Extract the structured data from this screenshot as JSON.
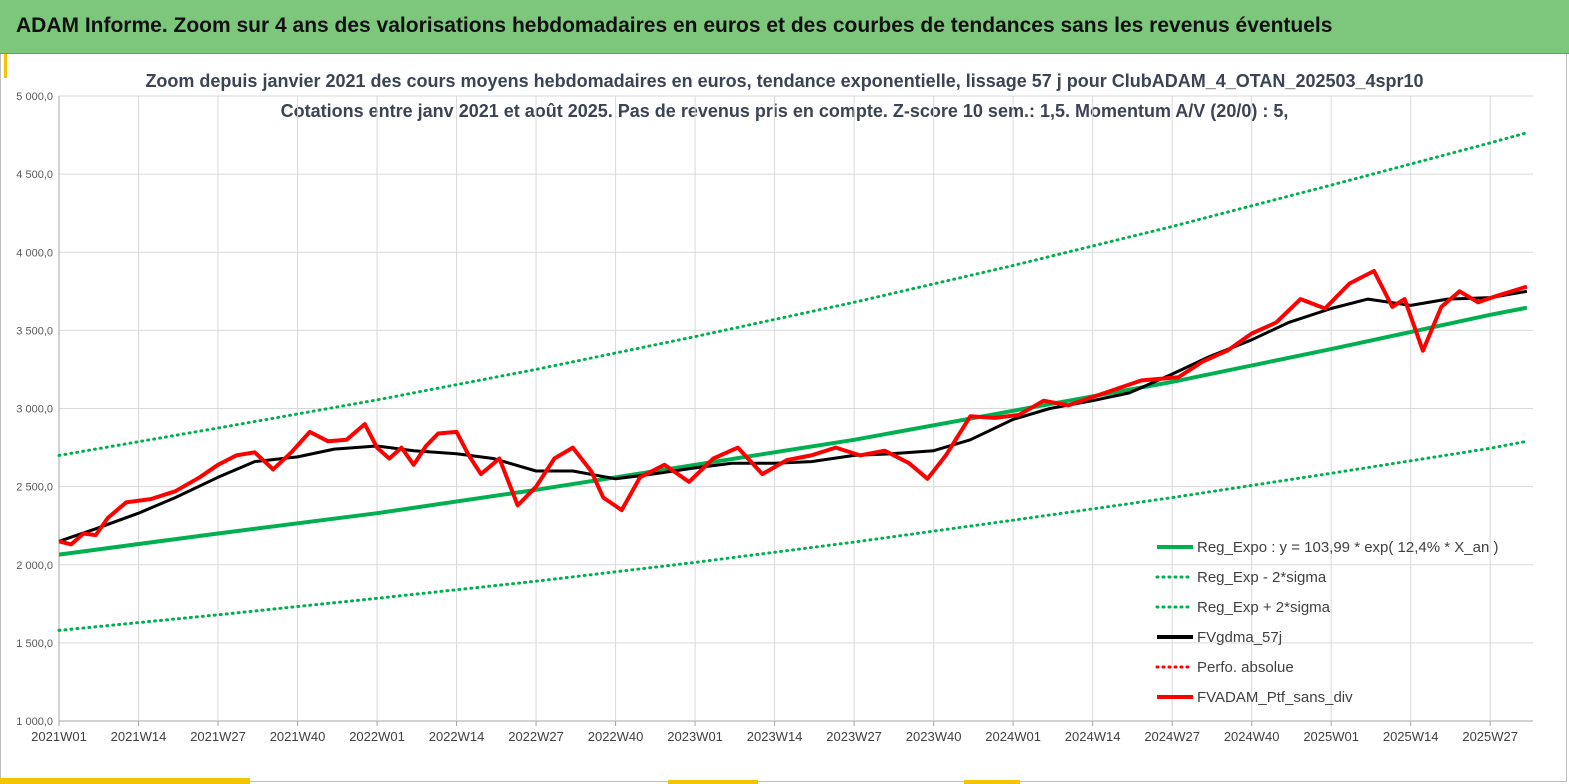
{
  "header": {
    "title": "ADAM Informe. Zoom sur 4 ans des valorisations hebdomadaires en euros et des courbes de tendances sans les revenus éventuels"
  },
  "colors": {
    "banner": "#7dc77d",
    "accent": "#f5c400",
    "trend": "#00b050",
    "smooth": "#000000",
    "portfolio": "#ff0000"
  },
  "chart_data": {
    "type": "line",
    "title": "Zoom depuis janvier 2021 des cours moyens hebdomadaires en euros, tendance exponentielle, lissage 57 j pour ClubADAM_4_OTAN_202503_4spr10",
    "subtitle": "Cotations entre janv 2021 et août 2025. Pas de revenus pris en compte. Z-score 10 sem.: 1,5. Momentum A/V (20/0) : 5,",
    "xlabel": "",
    "ylabel": "",
    "ylim": [
      1000,
      5000
    ],
    "y_ticks": [
      "1 000,0",
      "1 500,0",
      "2 000,0",
      "2 500,0",
      "3 000,0",
      "3 500,0",
      "4 000,0",
      "4 500,0",
      "5 000,0"
    ],
    "x_ticks": [
      "2021W01",
      "2021W14",
      "2021W27",
      "2021W40",
      "2022W01",
      "2022W14",
      "2022W27",
      "2022W40",
      "2023W01",
      "2023W14",
      "2023W27",
      "2023W40",
      "2024W01",
      "2024W14",
      "2024W27",
      "2024W40",
      "2025W01",
      "2025W14",
      "2025W27"
    ],
    "grid": true,
    "legend_position": "bottom-right",
    "series": [
      {
        "name": "Reg_Expo : y = 103,99 * exp( 12,4% * X_an )",
        "style": "solid",
        "color": "#00b050",
        "x": [
          "2021W01",
          "2021W27",
          "2022W01",
          "2022W27",
          "2023W01",
          "2023W27",
          "2024W01",
          "2024W27",
          "2025W01",
          "2025W27",
          "2025W33"
        ],
        "values": [
          2065,
          2200,
          2330,
          2480,
          2640,
          2800,
          2985,
          3170,
          3380,
          3600,
          3645
        ]
      },
      {
        "name": "Reg_Exp - 2*sigma",
        "style": "dotted",
        "color": "#00b050",
        "x": [
          "2021W01",
          "2021W27",
          "2022W01",
          "2022W27",
          "2023W01",
          "2023W27",
          "2024W01",
          "2024W27",
          "2025W01",
          "2025W27",
          "2025W33"
        ],
        "values": [
          1580,
          1680,
          1785,
          1895,
          2015,
          2145,
          2285,
          2430,
          2585,
          2745,
          2790
        ]
      },
      {
        "name": "Reg_Exp + 2*sigma",
        "style": "dotted",
        "color": "#00b050",
        "x": [
          "2021W01",
          "2021W27",
          "2022W01",
          "2022W27",
          "2023W01",
          "2023W27",
          "2024W01",
          "2024W27",
          "2025W01",
          "2025W27",
          "2025W33"
        ],
        "values": [
          2700,
          2875,
          3055,
          3250,
          3460,
          3680,
          3915,
          4165,
          4430,
          4700,
          4765
        ]
      },
      {
        "name": "FVgdma_57j",
        "style": "solid",
        "color": "#000000",
        "x": [
          "2021W01",
          "2021W07",
          "2021W14",
          "2021W20",
          "2021W27",
          "2021W33",
          "2021W40",
          "2021W46",
          "2022W01",
          "2022W07",
          "2022W14",
          "2022W20",
          "2022W27",
          "2022W33",
          "2022W40",
          "2022W46",
          "2023W01",
          "2023W07",
          "2023W14",
          "2023W20",
          "2023W27",
          "2023W33",
          "2023W40",
          "2023W46",
          "2024W01",
          "2024W07",
          "2024W14",
          "2024W20",
          "2024W27",
          "2024W33",
          "2024W40",
          "2024W46",
          "2025W01",
          "2025W07",
          "2025W14",
          "2025W20",
          "2025W27",
          "2025W33"
        ],
        "values": [
          2150,
          2230,
          2330,
          2430,
          2560,
          2660,
          2690,
          2740,
          2760,
          2730,
          2710,
          2680,
          2600,
          2600,
          2550,
          2580,
          2620,
          2650,
          2650,
          2660,
          2700,
          2710,
          2730,
          2800,
          2930,
          3000,
          3050,
          3100,
          3220,
          3330,
          3440,
          3550,
          3640,
          3700,
          3660,
          3700,
          3710,
          3750
        ]
      },
      {
        "name": "Perfo. absolue",
        "style": "dotted",
        "color": "#ff0000",
        "x": [],
        "values": []
      },
      {
        "name": "FVADAM_Ptf_sans_div",
        "style": "solid",
        "color": "#ff0000",
        "x": [
          "2021W01",
          "2021W03",
          "2021W05",
          "2021W07",
          "2021W09",
          "2021W12",
          "2021W16",
          "2021W20",
          "2021W24",
          "2021W27",
          "2021W30",
          "2021W33",
          "2021W36",
          "2021W39",
          "2021W42",
          "2021W45",
          "2021W48",
          "2021W51",
          "2022W01",
          "2022W03",
          "2022W05",
          "2022W07",
          "2022W09",
          "2022W11",
          "2022W14",
          "2022W16",
          "2022W18",
          "2022W21",
          "2022W24",
          "2022W27",
          "2022W30",
          "2022W33",
          "2022W36",
          "2022W38",
          "2022W41",
          "2022W44",
          "2022W48",
          "2022W52",
          "2023W04",
          "2023W08",
          "2023W12",
          "2023W16",
          "2023W20",
          "2023W24",
          "2023W28",
          "2023W32",
          "2023W36",
          "2023W39",
          "2023W42",
          "2023W46",
          "2023W50",
          "2024W02",
          "2024W06",
          "2024W10",
          "2024W16",
          "2024W22",
          "2024W28",
          "2024W32",
          "2024W36",
          "2024W40",
          "2024W44",
          "2024W48",
          "2024W52",
          "2025W04",
          "2025W08",
          "2025W11",
          "2025W13",
          "2025W16",
          "2025W19",
          "2025W22",
          "2025W25",
          "2025W28",
          "2025W33"
        ],
        "values": [
          2150,
          2130,
          2200,
          2190,
          2300,
          2400,
          2420,
          2470,
          2560,
          2640,
          2700,
          2720,
          2610,
          2720,
          2850,
          2790,
          2800,
          2900,
          2750,
          2680,
          2750,
          2640,
          2760,
          2840,
          2850,
          2700,
          2580,
          2680,
          2380,
          2500,
          2680,
          2750,
          2600,
          2430,
          2350,
          2560,
          2640,
          2530,
          2680,
          2750,
          2580,
          2670,
          2700,
          2750,
          2700,
          2730,
          2650,
          2550,
          2700,
          2950,
          2940,
          2960,
          3050,
          3020,
          3100,
          3180,
          3200,
          3300,
          3370,
          3480,
          3550,
          3700,
          3640,
          3800,
          3880,
          3650,
          3700,
          3370,
          3650,
          3750,
          3680,
          3720,
          3780
        ]
      }
    ]
  }
}
